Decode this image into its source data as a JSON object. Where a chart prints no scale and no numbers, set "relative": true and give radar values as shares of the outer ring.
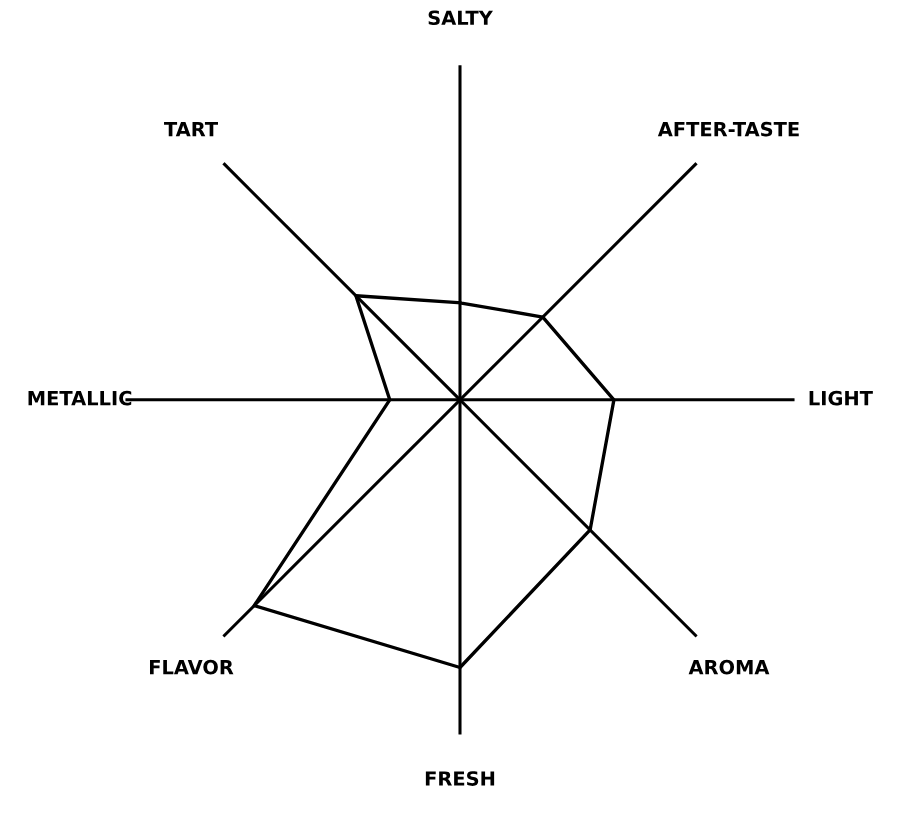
{
  "chart_data": {
    "type": "radar",
    "relative": true,
    "categories": [
      "SALTY",
      "AFTER-TASTE",
      "LIGHT",
      "AROMA",
      "FRESH",
      "FLAVOR",
      "METALLIC",
      "TART"
    ],
    "series": [
      {
        "color": "#000000",
        "values": [
          0.29,
          0.35,
          0.46,
          0.55,
          0.8,
          0.87,
          0.21,
          0.44
        ]
      }
    ],
    "marker": "none",
    "line_style": "solid"
  }
}
